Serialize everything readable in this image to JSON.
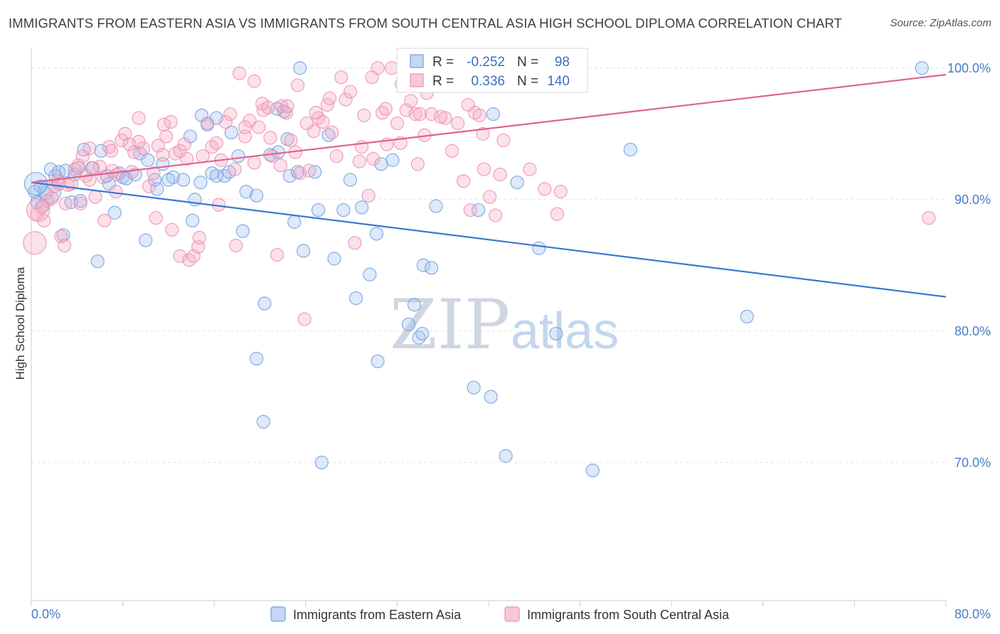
{
  "title": "IMMIGRANTS FROM EASTERN ASIA VS IMMIGRANTS FROM SOUTH CENTRAL ASIA HIGH SCHOOL DIPLOMA CORRELATION CHART",
  "source": "Source: ZipAtlas.com",
  "watermark": {
    "zip": "ZIP",
    "atlas": "atlas"
  },
  "stats": {
    "r_label": "R =",
    "n_label": "N =",
    "rows": [
      {
        "r": "-0.252",
        "n": "98",
        "color": "#6f9fe0"
      },
      {
        "r": "0.336",
        "n": "140",
        "color": "#ee8fb0"
      }
    ]
  },
  "chart_data": {
    "type": "scatter",
    "title": "IMMIGRANTS FROM EASTERN ASIA VS IMMIGRANTS FROM SOUTH CENTRAL ASIA HIGH SCHOOL DIPLOMA CORRELATION CHART",
    "xlabel": "",
    "ylabel": "High School Diploma",
    "xlim": [
      0,
      80
    ],
    "ylim": [
      59.5,
      101.5
    ],
    "x_ticks": [
      "0.0%",
      "80.0%"
    ],
    "y_ticks": [
      {
        "value": 70,
        "label": "70.0%"
      },
      {
        "value": 80,
        "label": "80.0%"
      },
      {
        "value": 90,
        "label": "90.0%"
      },
      {
        "value": 100,
        "label": "100.0%"
      }
    ],
    "grid": true,
    "legend_position": "bottom-center",
    "series": [
      {
        "name": "Immigrants from Eastern Asia",
        "color": "#6f9fe0",
        "trend": {
          "x": [
            0,
            80
          ],
          "y": [
            91.3,
            82.6
          ]
        },
        "points": [
          [
            0.3,
            90.6
          ],
          [
            0.5,
            89.8
          ],
          [
            0.8,
            91.0
          ],
          [
            1.0,
            89.5
          ],
          [
            1.3,
            90.5
          ],
          [
            1.7,
            92.3
          ],
          [
            2.1,
            91.8
          ],
          [
            2.4,
            92.1
          ],
          [
            3.0,
            92.2
          ],
          [
            3.5,
            89.8
          ],
          [
            3.8,
            91.9
          ],
          [
            4.1,
            92.4
          ],
          [
            4.6,
            93.8
          ],
          [
            5.3,
            92.4
          ],
          [
            6.1,
            93.7
          ],
          [
            6.8,
            91.2
          ],
          [
            7.3,
            89.0
          ],
          [
            7.7,
            92.0
          ],
          [
            8.0,
            91.7
          ],
          [
            8.3,
            91.6
          ],
          [
            9.5,
            93.5
          ],
          [
            10.2,
            93.0
          ],
          [
            10.8,
            91.5
          ],
          [
            11.0,
            90.8
          ],
          [
            11.5,
            92.7
          ],
          [
            12.4,
            91.7
          ],
          [
            13.3,
            91.5
          ],
          [
            14.3,
            90.0
          ],
          [
            14.1,
            88.4
          ],
          [
            14.9,
            96.4
          ],
          [
            15.4,
            95.7
          ],
          [
            15.8,
            92.0
          ],
          [
            16.2,
            91.8
          ],
          [
            16.9,
            91.8
          ],
          [
            17.3,
            92.1
          ],
          [
            18.1,
            93.3
          ],
          [
            18.5,
            87.6
          ],
          [
            18.8,
            90.6
          ],
          [
            19.7,
            90.3
          ],
          [
            20.4,
            82.1
          ],
          [
            20.9,
            93.4
          ],
          [
            21.6,
            93.6
          ],
          [
            22.1,
            96.7
          ],
          [
            22.6,
            91.8
          ],
          [
            23.3,
            92.1
          ],
          [
            23.0,
            88.3
          ],
          [
            23.8,
            86.1
          ],
          [
            24.8,
            92.1
          ],
          [
            25.1,
            89.2
          ],
          [
            26.5,
            85.5
          ],
          [
            27.3,
            89.2
          ],
          [
            27.9,
            91.5
          ],
          [
            28.4,
            82.5
          ],
          [
            28.9,
            89.4
          ],
          [
            29.6,
            84.3
          ],
          [
            30.2,
            87.4
          ],
          [
            30.6,
            92.7
          ],
          [
            31.6,
            93.0
          ],
          [
            33.0,
            80.5
          ],
          [
            33.5,
            82.0
          ],
          [
            33.9,
            79.5
          ],
          [
            34.2,
            79.8
          ],
          [
            34.3,
            85.0
          ],
          [
            35.0,
            84.8
          ],
          [
            35.4,
            89.5
          ],
          [
            38.7,
            75.7
          ],
          [
            39.1,
            89.2
          ],
          [
            40.2,
            75.0
          ],
          [
            40.4,
            96.5
          ],
          [
            41.5,
            70.5
          ],
          [
            42.5,
            91.3
          ],
          [
            44.4,
            86.3
          ],
          [
            45.9,
            79.8
          ],
          [
            49.1,
            69.4
          ],
          [
            52.4,
            93.8
          ],
          [
            62.6,
            81.1
          ],
          [
            77.9,
            100.0
          ],
          [
            39.0,
            100.0
          ],
          [
            43.0,
            100.0
          ],
          [
            23.5,
            100.0
          ],
          [
            25.4,
            70.0
          ],
          [
            19.7,
            77.9
          ],
          [
            20.3,
            73.1
          ],
          [
            30.3,
            77.7
          ],
          [
            4.3,
            89.9
          ],
          [
            2.8,
            87.3
          ],
          [
            5.8,
            85.3
          ],
          [
            10.0,
            86.9
          ],
          [
            6.6,
            91.8
          ],
          [
            9.1,
            91.9
          ],
          [
            12.0,
            91.5
          ],
          [
            14.8,
            91.3
          ],
          [
            13.9,
            94.8
          ],
          [
            17.5,
            95.1
          ],
          [
            21.5,
            96.9
          ],
          [
            26.0,
            94.9
          ],
          [
            16.2,
            96.2
          ],
          [
            22.4,
            94.6
          ]
        ],
        "large_points": [
          [
            1.6,
            90.6
          ],
          [
            0.4,
            91.2
          ]
        ]
      },
      {
        "name": "Immigrants from South Central Asia",
        "color": "#ee8fb0",
        "trend": {
          "x": [
            0,
            80
          ],
          "y": [
            91.3,
            99.5
          ]
        },
        "points": [
          [
            0.5,
            88.9
          ],
          [
            0.9,
            89.4
          ],
          [
            1.1,
            88.4
          ],
          [
            1.4,
            89.9
          ],
          [
            1.8,
            90.1
          ],
          [
            2.0,
            91.0
          ],
          [
            2.3,
            91.4
          ],
          [
            2.6,
            87.2
          ],
          [
            2.9,
            86.5
          ],
          [
            3.2,
            91.1
          ],
          [
            3.5,
            91.2
          ],
          [
            3.8,
            92.3
          ],
          [
            4.1,
            92.6
          ],
          [
            4.5,
            93.3
          ],
          [
            4.8,
            91.8
          ],
          [
            5.1,
            91.5
          ],
          [
            5.6,
            90.2
          ],
          [
            6.0,
            92.5
          ],
          [
            6.3,
            91.7
          ],
          [
            6.8,
            94.0
          ],
          [
            7.1,
            92.2
          ],
          [
            7.5,
            91.9
          ],
          [
            7.9,
            94.5
          ],
          [
            8.2,
            95.0
          ],
          [
            8.6,
            94.2
          ],
          [
            9.0,
            93.6
          ],
          [
            9.4,
            96.2
          ],
          [
            9.8,
            93.9
          ],
          [
            10.3,
            91.0
          ],
          [
            10.7,
            92.0
          ],
          [
            11.1,
            94.1
          ],
          [
            11.5,
            93.4
          ],
          [
            11.8,
            94.8
          ],
          [
            12.2,
            95.9
          ],
          [
            12.6,
            93.5
          ],
          [
            13.0,
            93.7
          ],
          [
            13.4,
            94.2
          ],
          [
            13.8,
            85.4
          ],
          [
            14.2,
            85.7
          ],
          [
            14.6,
            86.4
          ],
          [
            15.0,
            93.3
          ],
          [
            15.4,
            95.8
          ],
          [
            15.8,
            94.0
          ],
          [
            16.2,
            94.3
          ],
          [
            16.6,
            93.0
          ],
          [
            17.0,
            95.9
          ],
          [
            17.4,
            96.5
          ],
          [
            17.8,
            92.3
          ],
          [
            18.2,
            99.6
          ],
          [
            18.7,
            94.8
          ],
          [
            19.1,
            96.0
          ],
          [
            19.5,
            99.0
          ],
          [
            19.9,
            95.5
          ],
          [
            20.3,
            96.8
          ],
          [
            20.7,
            97.0
          ],
          [
            21.1,
            93.3
          ],
          [
            21.5,
            85.8
          ],
          [
            21.9,
            97.1
          ],
          [
            22.3,
            96.6
          ],
          [
            22.7,
            94.5
          ],
          [
            23.1,
            93.6
          ],
          [
            23.5,
            92.0
          ],
          [
            23.9,
            80.9
          ],
          [
            24.3,
            92.2
          ],
          [
            24.7,
            95.2
          ],
          [
            25.1,
            96.2
          ],
          [
            25.5,
            95.9
          ],
          [
            25.9,
            97.2
          ],
          [
            26.3,
            95.1
          ],
          [
            26.7,
            93.3
          ],
          [
            27.1,
            99.3
          ],
          [
            27.5,
            97.6
          ],
          [
            27.9,
            98.2
          ],
          [
            28.3,
            86.7
          ],
          [
            28.7,
            92.9
          ],
          [
            29.1,
            96.4
          ],
          [
            29.5,
            90.3
          ],
          [
            29.9,
            93.1
          ],
          [
            30.3,
            100.0
          ],
          [
            30.7,
            96.6
          ],
          [
            31.1,
            94.2
          ],
          [
            31.5,
            100.0
          ],
          [
            32.0,
            95.8
          ],
          [
            32.4,
            98.8
          ],
          [
            32.8,
            96.8
          ],
          [
            33.2,
            97.5
          ],
          [
            33.6,
            96.5
          ],
          [
            34.0,
            96.5
          ],
          [
            34.4,
            94.9
          ],
          [
            35.0,
            96.5
          ],
          [
            36.2,
            96.2
          ],
          [
            37.3,
            95.8
          ],
          [
            37.8,
            91.4
          ],
          [
            38.4,
            89.2
          ],
          [
            38.8,
            96.6
          ],
          [
            39.2,
            96.4
          ],
          [
            39.6,
            92.3
          ],
          [
            40.1,
            90.2
          ],
          [
            40.6,
            88.8
          ],
          [
            41.3,
            94.5
          ],
          [
            46.3,
            90.6
          ],
          [
            78.5,
            88.6
          ],
          [
            2.4,
            91.2
          ],
          [
            3.0,
            89.7
          ],
          [
            4.3,
            89.7
          ],
          [
            5.1,
            93.9
          ],
          [
            6.4,
            88.4
          ],
          [
            7.4,
            90.6
          ],
          [
            8.8,
            92.1
          ],
          [
            10.9,
            88.6
          ],
          [
            12.3,
            87.7
          ],
          [
            13.0,
            85.7
          ],
          [
            14.7,
            87.1
          ],
          [
            16.4,
            89.6
          ],
          [
            17.9,
            86.5
          ],
          [
            18.7,
            95.5
          ],
          [
            19.5,
            92.8
          ],
          [
            20.2,
            97.3
          ],
          [
            20.9,
            94.7
          ],
          [
            21.8,
            92.6
          ],
          [
            22.4,
            97.1
          ],
          [
            23.3,
            98.7
          ],
          [
            24.1,
            95.8
          ],
          [
            24.9,
            96.6
          ],
          [
            26.1,
            97.7
          ],
          [
            28.9,
            94.0
          ],
          [
            29.8,
            99.3
          ],
          [
            31.0,
            96.9
          ],
          [
            32.3,
            94.3
          ],
          [
            33.8,
            92.7
          ],
          [
            34.6,
            98.1
          ],
          [
            35.8,
            96.3
          ],
          [
            36.8,
            93.7
          ],
          [
            38.2,
            97.2
          ],
          [
            39.5,
            95.0
          ],
          [
            41.0,
            91.9
          ],
          [
            43.6,
            92.3
          ],
          [
            44.9,
            90.8
          ],
          [
            46.0,
            88.9
          ],
          [
            5.4,
            92.4
          ],
          [
            7.0,
            93.7
          ],
          [
            9.4,
            94.4
          ],
          [
            11.6,
            95.7
          ],
          [
            13.6,
            93.1
          ]
        ],
        "large_points": [
          [
            0.3,
            86.7
          ],
          [
            0.6,
            89.2
          ]
        ]
      }
    ]
  },
  "legend": [
    {
      "label": "Immigrants from Eastern Asia",
      "color": "#6f9fe0"
    },
    {
      "label": "Immigrants from South Central Asia",
      "color": "#ee8fb0"
    }
  ]
}
